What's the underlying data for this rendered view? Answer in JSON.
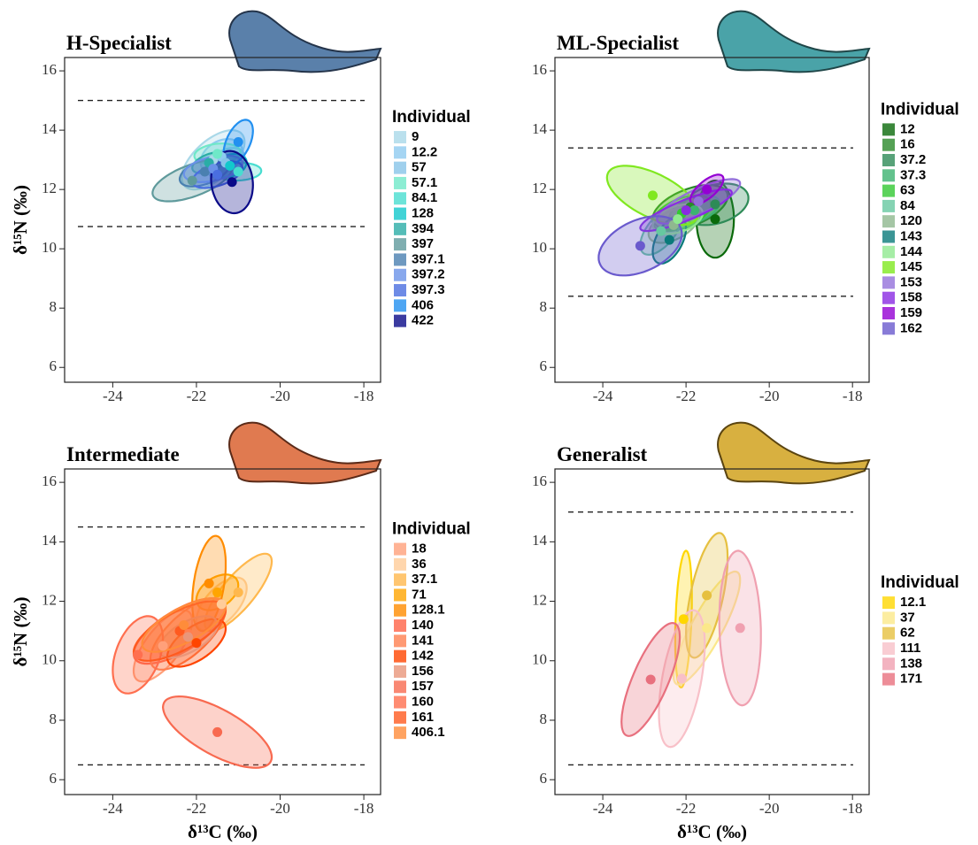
{
  "chart_data": [
    {
      "type": "ellipse",
      "title": "H-Specialist",
      "ylabel": "δ¹⁵N (‰)",
      "legend_title": "Individual",
      "legend": "right",
      "xlim": [
        -25.15,
        -17.6
      ],
      "ylim": [
        5.5,
        16.45
      ],
      "xticks": [
        -24,
        -22,
        -20,
        -18
      ],
      "yticks": [
        6,
        8,
        10,
        12,
        14,
        16
      ],
      "hlines": [
        15,
        10.75
      ],
      "series": [
        {
          "name": "9",
          "color": "#a9d8e8",
          "x": -21.6,
          "y": 13.0,
          "sd_x": 0.75,
          "sd_y": 1.0,
          "r": 0.6
        },
        {
          "name": "12.2",
          "color": "#8ecbf0",
          "x": -21.4,
          "y": 13.1,
          "sd_x": 0.5,
          "sd_y": 0.6,
          "r": 0.3
        },
        {
          "name": "57",
          "color": "#87c4e8",
          "x": -21.3,
          "y": 12.9,
          "sd_x": 0.45,
          "sd_y": 0.5,
          "r": 0.4
        },
        {
          "name": "57.1",
          "color": "#6fe8c8",
          "x": -21.5,
          "y": 13.2,
          "sd_x": 0.55,
          "sd_y": 0.35,
          "r": 0.2
        },
        {
          "name": "84.1",
          "color": "#48ddd0",
          "x": -21.0,
          "y": 12.6,
          "sd_x": 0.55,
          "sd_y": 0.3,
          "r": 0.1
        },
        {
          "name": "128",
          "color": "#12c8cc",
          "x": -21.2,
          "y": 12.8,
          "sd_x": 0.4,
          "sd_y": 0.4,
          "r": 0.3
        },
        {
          "name": "394",
          "color": "#2aada6",
          "x": -21.7,
          "y": 12.9,
          "sd_x": 0.4,
          "sd_y": 0.35,
          "r": 0.5
        },
        {
          "name": "397",
          "color": "#5f9a9c",
          "x": -22.1,
          "y": 12.3,
          "sd_x": 0.95,
          "sd_y": 0.7,
          "r": 0.6
        },
        {
          "name": "397.1",
          "color": "#4a80b0",
          "x": -21.8,
          "y": 12.6,
          "sd_x": 0.6,
          "sd_y": 0.5,
          "r": 0.5
        },
        {
          "name": "397.2",
          "color": "#6a92e8",
          "x": -21.6,
          "y": 12.7,
          "sd_x": 0.7,
          "sd_y": 0.45,
          "r": 0.4
        },
        {
          "name": "397.3",
          "color": "#4a6ee0",
          "x": -21.5,
          "y": 12.5,
          "sd_x": 0.6,
          "sd_y": 0.45,
          "r": 0.5
        },
        {
          "name": "406",
          "color": "#2290f0",
          "x": -21.0,
          "y": 13.6,
          "sd_x": 0.35,
          "sd_y": 0.75,
          "r": 0.5
        },
        {
          "name": "422",
          "color": "#0a0a88",
          "x": -21.15,
          "y": 12.25,
          "sd_x": 0.5,
          "sd_y": 1.05,
          "r": -0.1
        }
      ]
    },
    {
      "type": "ellipse",
      "title": "ML-Specialist",
      "legend_title": "Individual",
      "legend": "right",
      "xlim": [
        -25.15,
        -17.6
      ],
      "ylim": [
        5.5,
        16.45
      ],
      "xticks": [
        -24,
        -22,
        -20,
        -18
      ],
      "yticks": [
        6,
        8,
        10,
        12,
        14,
        16
      ],
      "hlines": [
        13.4,
        8.4
      ],
      "series": [
        {
          "name": "12",
          "color": "#0a6a0a",
          "x": -21.3,
          "y": 11.0,
          "sd_x": 0.45,
          "sd_y": 1.3,
          "r": 0.0
        },
        {
          "name": "16",
          "color": "#2a8a2a",
          "x": -21.9,
          "y": 11.4,
          "sd_x": 0.9,
          "sd_y": 0.75,
          "r": 0.5
        },
        {
          "name": "37.2",
          "color": "#2e8b57",
          "x": -21.3,
          "y": 11.5,
          "sd_x": 0.8,
          "sd_y": 0.7,
          "r": 0.3
        },
        {
          "name": "37.3",
          "color": "#3cb371",
          "x": -21.8,
          "y": 11.3,
          "sd_x": 0.6,
          "sd_y": 0.5,
          "r": 0.5
        },
        {
          "name": "63",
          "color": "#32c832",
          "x": -22.1,
          "y": 11.2,
          "sd_x": 0.7,
          "sd_y": 0.6,
          "r": 0.5
        },
        {
          "name": "84",
          "color": "#66c8a0",
          "x": -22.6,
          "y": 10.6,
          "sd_x": 0.5,
          "sd_y": 0.8,
          "r": 0.6
        },
        {
          "name": "120",
          "color": "#8fb88f",
          "x": -22.3,
          "y": 10.8,
          "sd_x": 0.6,
          "sd_y": 0.6,
          "r": 0.5
        },
        {
          "name": "143",
          "color": "#0a7a7a",
          "x": -22.4,
          "y": 10.3,
          "sd_x": 0.4,
          "sd_y": 0.8,
          "r": 0.5
        },
        {
          "name": "144",
          "color": "#90e890",
          "x": -22.2,
          "y": 11.0,
          "sd_x": 0.6,
          "sd_y": 0.5,
          "r": 0.4
        },
        {
          "name": "145",
          "color": "#80e820",
          "x": -22.8,
          "y": 11.8,
          "sd_x": 1.1,
          "sd_y": 1.0,
          "r": -0.6
        },
        {
          "name": "153",
          "color": "#9370db",
          "x": -21.7,
          "y": 11.6,
          "sd_x": 1.0,
          "sd_y": 0.75,
          "r": 0.8
        },
        {
          "name": "158",
          "color": "#8a2be2",
          "x": -22.0,
          "y": 11.3,
          "sd_x": 1.1,
          "sd_y": 0.7,
          "r": 0.85
        },
        {
          "name": "159",
          "color": "#9400d3",
          "x": -21.5,
          "y": 12.0,
          "sd_x": 0.4,
          "sd_y": 0.5,
          "r": 0.7
        },
        {
          "name": "162",
          "color": "#6a5acd",
          "x": -23.1,
          "y": 10.1,
          "sd_x": 1.0,
          "sd_y": 1.0,
          "r": 0.4
        }
      ]
    },
    {
      "type": "ellipse",
      "title": "Intermediate",
      "xlabel": "δ¹³C (‰)",
      "ylabel": "δ¹⁵N (‰)",
      "legend_title": "Individual",
      "legend": "right",
      "xlim": [
        -25.15,
        -17.6
      ],
      "ylim": [
        5.5,
        16.45
      ],
      "xticks": [
        -24,
        -22,
        -20,
        -18
      ],
      "yticks": [
        6,
        8,
        10,
        12,
        14,
        16
      ],
      "hlines": [
        14.5,
        6.5
      ],
      "series": [
        {
          "name": "18",
          "color": "#ffa07a",
          "x": -22.8,
          "y": 10.5,
          "sd_x": 0.7,
          "sd_y": 1.2,
          "r": 0.7
        },
        {
          "name": "36",
          "color": "#ffcc99",
          "x": -21.4,
          "y": 11.9,
          "sd_x": 0.6,
          "sd_y": 0.9,
          "r": 0.6
        },
        {
          "name": "37.1",
          "color": "#ffb84d",
          "x": -21.0,
          "y": 12.3,
          "sd_x": 0.8,
          "sd_y": 1.3,
          "r": 0.8
        },
        {
          "name": "71",
          "color": "#ffa500",
          "x": -21.5,
          "y": 12.3,
          "sd_x": 0.5,
          "sd_y": 0.6,
          "r": 0.4
        },
        {
          "name": "128.1",
          "color": "#ff8c00",
          "x": -21.7,
          "y": 12.6,
          "sd_x": 0.4,
          "sd_y": 1.6,
          "r": 0.4
        },
        {
          "name": "140",
          "color": "#ff6347",
          "x": -22.4,
          "y": 11.0,
          "sd_x": 1.1,
          "sd_y": 1.1,
          "r": 0.7
        },
        {
          "name": "141",
          "color": "#ff7f50",
          "x": -22.2,
          "y": 10.9,
          "sd_x": 0.9,
          "sd_y": 1.2,
          "r": 0.7
        },
        {
          "name": "142",
          "color": "#ff4500",
          "x": -22.0,
          "y": 10.6,
          "sd_x": 0.7,
          "sd_y": 0.8,
          "r": 0.6
        },
        {
          "name": "156",
          "color": "#e9967a",
          "x": -22.2,
          "y": 10.8,
          "sd_x": 0.7,
          "sd_y": 0.7,
          "r": 0.6
        },
        {
          "name": "157",
          "color": "#f86a50",
          "x": -21.5,
          "y": 7.6,
          "sd_x": 1.3,
          "sd_y": 1.2,
          "r": -0.7
        },
        {
          "name": "160",
          "color": "#ff6f4f",
          "x": -23.4,
          "y": 10.2,
          "sd_x": 0.6,
          "sd_y": 1.3,
          "r": 0.4
        },
        {
          "name": "161",
          "color": "#ff5a1f",
          "x": -22.4,
          "y": 11.0,
          "sd_x": 1.1,
          "sd_y": 1.0,
          "r": 0.7
        },
        {
          "name": "406.1",
          "color": "#ff8c3a",
          "x": -22.3,
          "y": 11.2,
          "sd_x": 1.0,
          "sd_y": 0.9,
          "r": 0.7
        }
      ]
    },
    {
      "type": "ellipse",
      "title": "Generalist",
      "xlabel": "δ¹³C (‰)",
      "legend_title": "Individual",
      "legend": "right",
      "xlim": [
        -25.15,
        -17.6
      ],
      "ylim": [
        5.5,
        16.45
      ],
      "xticks": [
        -24,
        -22,
        -20,
        -18
      ],
      "yticks": [
        6,
        8,
        10,
        12,
        14,
        16
      ],
      "hlines": [
        15,
        6.5
      ],
      "series": [
        {
          "name": "12.1",
          "color": "#ffd700",
          "x": -22.06,
          "y": 11.4,
          "sd_x": 0.2,
          "sd_y": 2.3,
          "r": 0.3
        },
        {
          "name": "37",
          "color": "#fbe88a",
          "x": -21.5,
          "y": 11.1,
          "sd_x": 0.8,
          "sd_y": 1.9,
          "r": 0.85
        },
        {
          "name": "62",
          "color": "#e6c040",
          "x": -21.5,
          "y": 12.2,
          "sd_x": 0.5,
          "sd_y": 2.1,
          "r": 0.6
        },
        {
          "name": "111",
          "color": "#f8c0c8",
          "x": -22.1,
          "y": 9.4,
          "sd_x": 0.55,
          "sd_y": 2.3,
          "r": 0.5
        },
        {
          "name": "138",
          "color": "#f0a0b0",
          "x": -20.7,
          "y": 11.1,
          "sd_x": 0.5,
          "sd_y": 2.6,
          "r": -0.1
        },
        {
          "name": "171",
          "color": "#e8707e",
          "x": -22.85,
          "y": 9.37,
          "sd_x": 0.7,
          "sd_y": 1.9,
          "r": 0.75
        }
      ]
    }
  ]
}
